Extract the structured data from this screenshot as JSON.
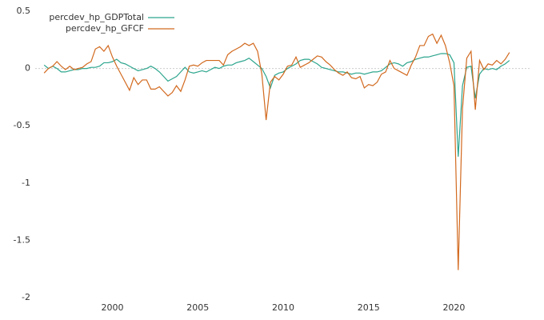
{
  "chart_data": {
    "type": "line",
    "x": [
      1996,
      1996.25,
      1996.5,
      1996.75,
      1997,
      1997.25,
      1997.5,
      1997.75,
      1998,
      1998.25,
      1998.5,
      1998.75,
      1999,
      1999.25,
      1999.5,
      1999.75,
      2000,
      2000.25,
      2000.5,
      2000.75,
      2001,
      2001.25,
      2001.5,
      2001.75,
      2002,
      2002.25,
      2002.5,
      2002.75,
      2003,
      2003.25,
      2003.5,
      2003.75,
      2004,
      2004.25,
      2004.5,
      2004.75,
      2005,
      2005.25,
      2005.5,
      2005.75,
      2006,
      2006.25,
      2006.5,
      2006.75,
      2007,
      2007.25,
      2007.5,
      2007.75,
      2008,
      2008.25,
      2008.5,
      2008.75,
      2009,
      2009.25,
      2009.5,
      2009.75,
      2010,
      2010.25,
      2010.5,
      2010.75,
      2011,
      2011.25,
      2011.5,
      2011.75,
      2012,
      2012.25,
      2012.5,
      2012.75,
      2013,
      2013.25,
      2013.5,
      2013.75,
      2014,
      2014.25,
      2014.5,
      2014.75,
      2015,
      2015.25,
      2015.5,
      2015.75,
      2016,
      2016.25,
      2016.5,
      2016.75,
      2017,
      2017.25,
      2017.5,
      2017.75,
      2018,
      2018.25,
      2018.5,
      2018.75,
      2019,
      2019.25,
      2019.5,
      2019.75,
      2020,
      2020.25,
      2020.5,
      2020.75,
      2021,
      2021.25,
      2021.5,
      2021.75,
      2022,
      2022.25,
      2022.5,
      2022.75,
      2023,
      2023.25
    ],
    "series": [
      {
        "name": "percdev_hp_GDPTotal",
        "color": "#2ca58d",
        "values": [
          0.03,
          0.0,
          0.02,
          0.0,
          -0.03,
          -0.03,
          -0.02,
          -0.01,
          -0.01,
          0.0,
          0.0,
          0.01,
          0.01,
          0.02,
          0.05,
          0.05,
          0.06,
          0.08,
          0.05,
          0.04,
          0.02,
          0.0,
          -0.02,
          -0.01,
          0.0,
          0.02,
          0.0,
          -0.03,
          -0.07,
          -0.11,
          -0.09,
          -0.07,
          -0.03,
          0.01,
          -0.03,
          -0.04,
          -0.03,
          -0.02,
          -0.03,
          -0.01,
          0.01,
          0.0,
          0.02,
          0.03,
          0.03,
          0.05,
          0.06,
          0.07,
          0.09,
          0.06,
          0.03,
          0.0,
          -0.07,
          -0.17,
          -0.06,
          -0.04,
          -0.03,
          0.0,
          0.02,
          0.04,
          0.07,
          0.08,
          0.08,
          0.06,
          0.04,
          0.01,
          0.0,
          -0.01,
          -0.02,
          -0.03,
          -0.03,
          -0.04,
          -0.05,
          -0.04,
          -0.04,
          -0.05,
          -0.04,
          -0.03,
          -0.03,
          -0.02,
          0.01,
          0.04,
          0.05,
          0.04,
          0.02,
          0.05,
          0.06,
          0.08,
          0.09,
          0.1,
          0.1,
          0.11,
          0.12,
          0.13,
          0.13,
          0.12,
          0.05,
          -0.77,
          -0.15,
          0.01,
          0.02,
          -0.26,
          -0.05,
          0.0,
          -0.01,
          0.0,
          -0.01,
          0.02,
          0.04,
          0.07
        ]
      },
      {
        "name": "percdev_hp_GFCF",
        "color": "#d2691e",
        "values": [
          -0.04,
          0.0,
          0.02,
          0.06,
          0.02,
          -0.01,
          0.02,
          -0.01,
          0.0,
          0.01,
          0.04,
          0.06,
          0.17,
          0.19,
          0.15,
          0.2,
          0.1,
          0.02,
          -0.05,
          -0.12,
          -0.19,
          -0.08,
          -0.14,
          -0.1,
          -0.1,
          -0.18,
          -0.18,
          -0.16,
          -0.2,
          -0.24,
          -0.21,
          -0.15,
          -0.2,
          -0.1,
          0.02,
          0.03,
          0.02,
          0.05,
          0.07,
          0.07,
          0.07,
          0.07,
          0.03,
          0.12,
          0.15,
          0.17,
          0.19,
          0.22,
          0.2,
          0.22,
          0.15,
          -0.05,
          -0.45,
          -0.12,
          -0.07,
          -0.1,
          -0.05,
          0.02,
          0.03,
          0.1,
          0.01,
          0.03,
          0.05,
          0.08,
          0.11,
          0.1,
          0.06,
          0.03,
          -0.01,
          -0.04,
          -0.06,
          -0.03,
          -0.08,
          -0.09,
          -0.07,
          -0.17,
          -0.14,
          -0.15,
          -0.12,
          -0.05,
          -0.03,
          0.07,
          0.0,
          -0.02,
          -0.04,
          -0.06,
          0.03,
          0.1,
          0.2,
          0.2,
          0.28,
          0.3,
          0.22,
          0.29,
          0.2,
          0.05,
          -0.15,
          -1.76,
          -0.35,
          0.09,
          0.15,
          -0.36,
          0.07,
          -0.01,
          0.04,
          0.03,
          0.07,
          0.04,
          0.08,
          0.14
        ]
      }
    ],
    "xlim": [
      1995.5,
      2024.5
    ],
    "xticks": [
      2000,
      2005,
      2010,
      2015,
      2020
    ],
    "ylim": [
      -2,
      0.5
    ],
    "yticks": [
      0.5,
      0,
      -0.5,
      -1,
      -1.5,
      -2
    ]
  }
}
